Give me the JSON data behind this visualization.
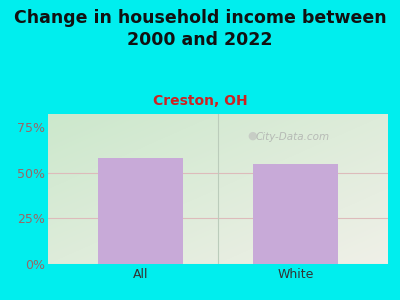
{
  "title": "Change in household income between\n2000 and 2022",
  "subtitle": "Creston, OH",
  "categories": [
    "All",
    "White"
  ],
  "values": [
    58.0,
    54.5
  ],
  "bar_color": "#c8aad8",
  "background_color": "#00EEEE",
  "plot_bg_topleft": "#cce8cc",
  "plot_bg_bottomright": "#f0f0e8",
  "ylabel_ticks": [
    0,
    25,
    50,
    75
  ],
  "ylim": [
    0,
    82
  ],
  "title_fontsize": 12.5,
  "subtitle_fontsize": 10,
  "tick_label_fontsize": 9,
  "watermark": "City-Data.com",
  "subtitle_color": "#cc2222",
  "tick_color": "#996666",
  "gridline_color": "#ddbbbb",
  "divider_color": "#bbccbb"
}
